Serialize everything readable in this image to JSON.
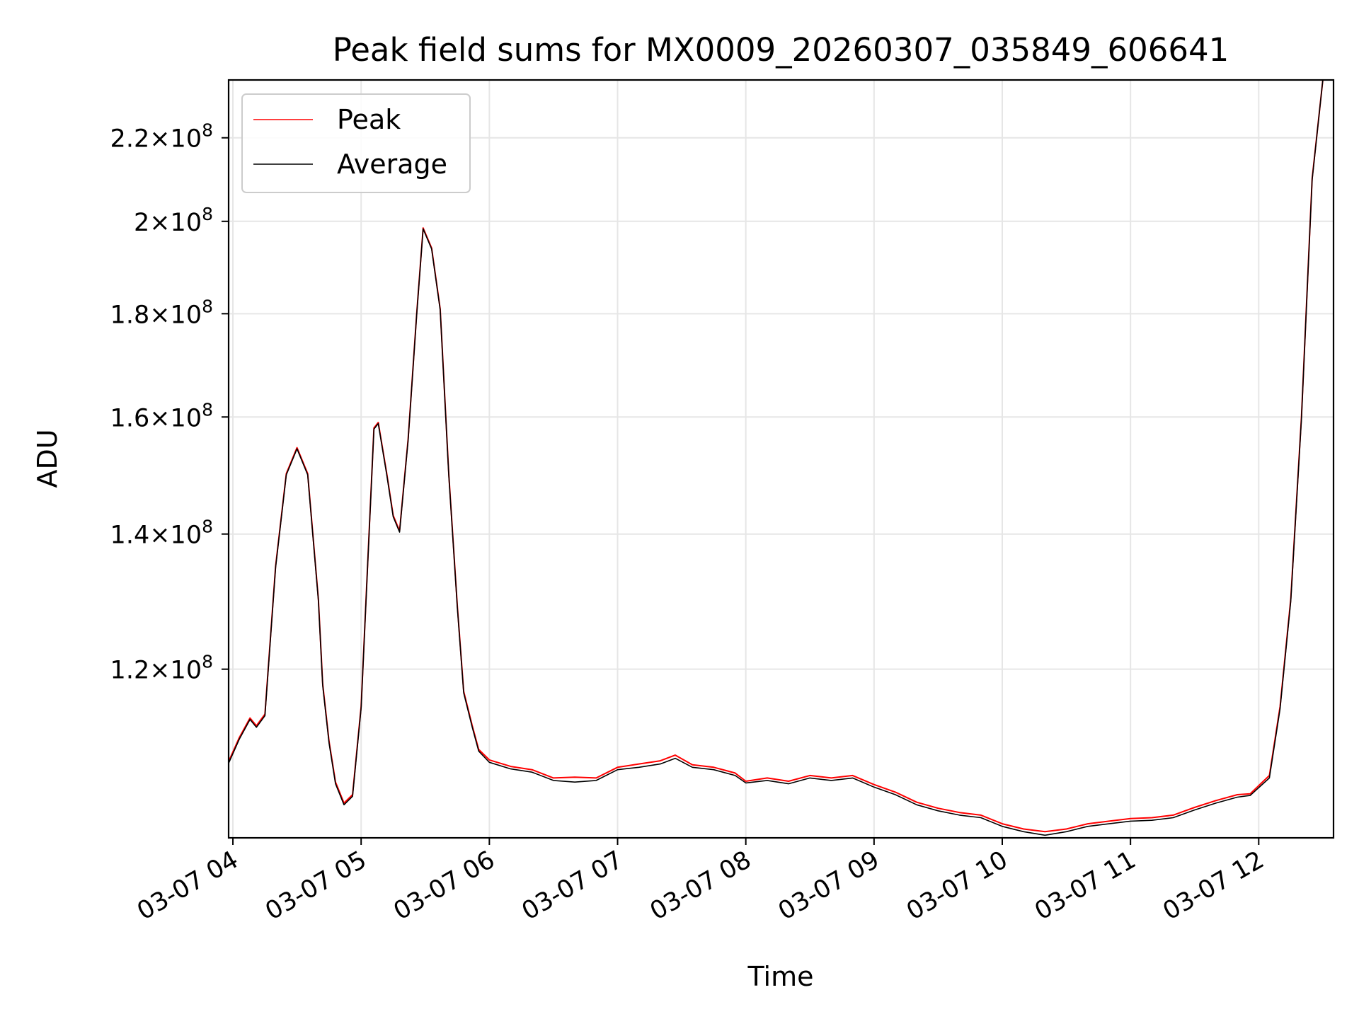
{
  "chart_data": {
    "type": "line",
    "title": "Peak field sums for MX0009_20260307_035849_606641",
    "xlabel": "Time",
    "ylabel": "ADU",
    "y_scale": "log",
    "ylim": [
      99000000,
      235000000
    ],
    "xlim": [
      "2026-03-07 03:58",
      "2026-03-07 12:35"
    ],
    "x_ticks": [
      {
        "value": "2026-03-07 04:00",
        "label": "03-07 04"
      },
      {
        "value": "2026-03-07 05:00",
        "label": "03-07 05"
      },
      {
        "value": "2026-03-07 06:00",
        "label": "03-07 06"
      },
      {
        "value": "2026-03-07 07:00",
        "label": "03-07 07"
      },
      {
        "value": "2026-03-07 08:00",
        "label": "03-07 08"
      },
      {
        "value": "2026-03-07 09:00",
        "label": "03-07 09"
      },
      {
        "value": "2026-03-07 10:00",
        "label": "03-07 10"
      },
      {
        "value": "2026-03-07 11:00",
        "label": "03-07 11"
      },
      {
        "value": "2026-03-07 12:00",
        "label": "03-07 12"
      }
    ],
    "y_ticks": [
      {
        "value": 120000000,
        "base": "1.2",
        "exp": "8"
      },
      {
        "value": 140000000,
        "base": "1.4",
        "exp": "8"
      },
      {
        "value": 160000000,
        "base": "1.6",
        "exp": "8"
      },
      {
        "value": 180000000,
        "base": "1.8",
        "exp": "8"
      },
      {
        "value": 200000000,
        "base": "2",
        "exp": "8"
      },
      {
        "value": 220000000,
        "base": "2.2",
        "exp": "8"
      }
    ],
    "grid": true,
    "legend_position": "top-left",
    "series": [
      {
        "name": "Peak",
        "color": "#ff0000",
        "x": [
          "2026-03-07 03:58",
          "2026-03-07 04:03",
          "2026-03-07 04:08",
          "2026-03-07 04:11",
          "2026-03-07 04:15",
          "2026-03-07 04:20",
          "2026-03-07 04:25",
          "2026-03-07 04:30",
          "2026-03-07 04:35",
          "2026-03-07 04:40",
          "2026-03-07 04:42",
          "2026-03-07 04:45",
          "2026-03-07 04:48",
          "2026-03-07 04:52",
          "2026-03-07 04:56",
          "2026-03-07 05:00",
          "2026-03-07 05:03",
          "2026-03-07 05:06",
          "2026-03-07 05:08",
          "2026-03-07 05:12",
          "2026-03-07 05:15",
          "2026-03-07 05:18",
          "2026-03-07 05:22",
          "2026-03-07 05:26",
          "2026-03-07 05:29",
          "2026-03-07 05:33",
          "2026-03-07 05:37",
          "2026-03-07 05:41",
          "2026-03-07 05:45",
          "2026-03-07 05:48",
          "2026-03-07 05:52",
          "2026-03-07 05:55",
          "2026-03-07 06:00",
          "2026-03-07 06:10",
          "2026-03-07 06:20",
          "2026-03-07 06:30",
          "2026-03-07 06:40",
          "2026-03-07 06:50",
          "2026-03-07 07:00",
          "2026-03-07 07:10",
          "2026-03-07 07:20",
          "2026-03-07 07:27",
          "2026-03-07 07:35",
          "2026-03-07 07:45",
          "2026-03-07 07:55",
          "2026-03-07 08:00",
          "2026-03-07 08:10",
          "2026-03-07 08:20",
          "2026-03-07 08:30",
          "2026-03-07 08:40",
          "2026-03-07 08:50",
          "2026-03-07 09:00",
          "2026-03-07 09:10",
          "2026-03-07 09:20",
          "2026-03-07 09:30",
          "2026-03-07 09:40",
          "2026-03-07 09:50",
          "2026-03-07 10:00",
          "2026-03-07 10:10",
          "2026-03-07 10:20",
          "2026-03-07 10:30",
          "2026-03-07 10:40",
          "2026-03-07 10:50",
          "2026-03-07 11:00",
          "2026-03-07 11:10",
          "2026-03-07 11:20",
          "2026-03-07 11:30",
          "2026-03-07 11:40",
          "2026-03-07 11:50",
          "2026-03-07 11:56",
          "2026-03-07 12:05",
          "2026-03-07 12:10",
          "2026-03-07 12:15",
          "2026-03-07 12:20",
          "2026-03-07 12:25",
          "2026-03-07 12:30",
          "2026-03-07 12:35"
        ],
        "values": [
          108000000,
          111000000,
          113500000,
          112500000,
          114000000,
          135000000,
          150000000,
          154500000,
          150000000,
          130000000,
          118000000,
          110500000,
          105500000,
          103000000,
          104000000,
          115000000,
          135000000,
          158000000,
          159000000,
          150000000,
          143000000,
          140500000,
          156000000,
          180000000,
          198500000,
          194000000,
          181000000,
          150000000,
          129000000,
          117000000,
          112500000,
          109500000,
          108200000,
          107400000,
          107000000,
          106000000,
          106100000,
          106000000,
          107300000,
          107700000,
          108100000,
          108800000,
          107600000,
          107300000,
          106600000,
          105600000,
          106000000,
          105600000,
          106300000,
          106000000,
          106300000,
          105200000,
          104300000,
          103100000,
          102400000,
          101900000,
          101600000,
          100600000,
          100000000,
          99700000,
          100000000,
          100600000,
          100900000,
          101200000,
          101300000,
          101600000,
          102500000,
          103300000,
          104000000,
          104100000,
          106300000,
          115000000,
          130000000,
          160000000,
          210000000,
          235000000,
          235000000
        ]
      },
      {
        "name": "Average",
        "color": "#000000",
        "x": [
          "2026-03-07 03:58",
          "2026-03-07 04:03",
          "2026-03-07 04:08",
          "2026-03-07 04:11",
          "2026-03-07 04:15",
          "2026-03-07 04:20",
          "2026-03-07 04:25",
          "2026-03-07 04:30",
          "2026-03-07 04:35",
          "2026-03-07 04:40",
          "2026-03-07 04:42",
          "2026-03-07 04:45",
          "2026-03-07 04:48",
          "2026-03-07 04:52",
          "2026-03-07 04:56",
          "2026-03-07 05:00",
          "2026-03-07 05:03",
          "2026-03-07 05:06",
          "2026-03-07 05:08",
          "2026-03-07 05:12",
          "2026-03-07 05:15",
          "2026-03-07 05:18",
          "2026-03-07 05:22",
          "2026-03-07 05:26",
          "2026-03-07 05:29",
          "2026-03-07 05:33",
          "2026-03-07 05:37",
          "2026-03-07 05:41",
          "2026-03-07 05:45",
          "2026-03-07 05:48",
          "2026-03-07 05:52",
          "2026-03-07 05:55",
          "2026-03-07 06:00",
          "2026-03-07 06:10",
          "2026-03-07 06:20",
          "2026-03-07 06:30",
          "2026-03-07 06:40",
          "2026-03-07 06:50",
          "2026-03-07 07:00",
          "2026-03-07 07:10",
          "2026-03-07 07:20",
          "2026-03-07 07:27",
          "2026-03-07 07:35",
          "2026-03-07 07:45",
          "2026-03-07 07:55",
          "2026-03-07 08:00",
          "2026-03-07 08:10",
          "2026-03-07 08:20",
          "2026-03-07 08:30",
          "2026-03-07 08:40",
          "2026-03-07 08:50",
          "2026-03-07 09:00",
          "2026-03-07 09:10",
          "2026-03-07 09:20",
          "2026-03-07 09:30",
          "2026-03-07 09:40",
          "2026-03-07 09:50",
          "2026-03-07 10:00",
          "2026-03-07 10:10",
          "2026-03-07 10:20",
          "2026-03-07 10:30",
          "2026-03-07 10:40",
          "2026-03-07 10:50",
          "2026-03-07 11:00",
          "2026-03-07 11:10",
          "2026-03-07 11:20",
          "2026-03-07 11:30",
          "2026-03-07 11:40",
          "2026-03-07 11:50",
          "2026-03-07 11:56",
          "2026-03-07 12:05",
          "2026-03-07 12:10",
          "2026-03-07 12:15",
          "2026-03-07 12:20",
          "2026-03-07 12:25",
          "2026-03-07 12:30",
          "2026-03-07 12:35"
        ],
        "values": [
          107800000,
          110800000,
          113300000,
          112300000,
          113800000,
          134800000,
          149800000,
          154300000,
          149800000,
          129800000,
          117800000,
          110300000,
          105300000,
          102800000,
          103800000,
          114800000,
          134800000,
          157800000,
          158800000,
          149800000,
          142800000,
          140300000,
          155800000,
          179800000,
          198300000,
          193800000,
          180800000,
          149800000,
          128800000,
          116800000,
          112300000,
          109300000,
          107900000,
          107100000,
          106700000,
          105700000,
          105500000,
          105700000,
          107000000,
          107300000,
          107700000,
          108400000,
          107300000,
          107000000,
          106300000,
          105400000,
          105700000,
          105300000,
          106000000,
          105700000,
          106000000,
          104900000,
          104000000,
          102800000,
          102100000,
          101600000,
          101300000,
          100300000,
          99700000,
          99300000,
          99700000,
          100300000,
          100600000,
          100900000,
          101000000,
          101300000,
          102200000,
          103000000,
          103700000,
          103900000,
          106000000,
          114700000,
          129700000,
          159700000,
          209700000,
          235000000,
          235000000
        ]
      }
    ]
  }
}
